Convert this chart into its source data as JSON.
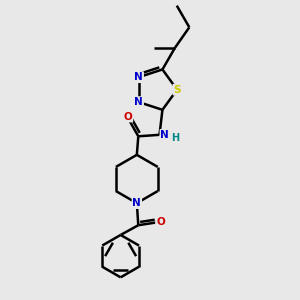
{
  "bg_color": "#e8e8e8",
  "atom_colors": {
    "C": "#000000",
    "N": "#0000cc",
    "O": "#cc0000",
    "S": "#cccc00",
    "H": "#008888"
  },
  "bond_color": "#000000",
  "bond_width": 1.8,
  "figsize": [
    3.0,
    3.0
  ],
  "dpi": 100
}
